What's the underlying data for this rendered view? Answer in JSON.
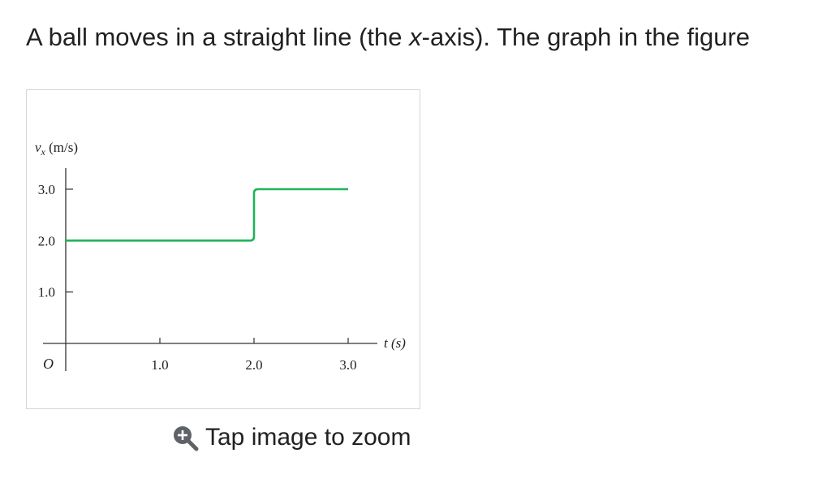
{
  "question": {
    "before": "A ball moves in a straight line (the ",
    "var": "x",
    "after": "-axis). The graph in the figure"
  },
  "figure": {
    "ylabel_var": "v",
    "ylabel_sub": "x",
    "ylabel_unit": " (m/s)",
    "xlabel": "t (s)",
    "origin": "O",
    "line_color": "#20b35a"
  },
  "chart_data": {
    "type": "line",
    "title": "",
    "xlabel": "t (s)",
    "ylabel": "v_x (m/s)",
    "xlim": [
      0,
      3.0
    ],
    "ylim": [
      0,
      3.0
    ],
    "xticks": [
      "1.0",
      "2.0",
      "3.0"
    ],
    "yticks": [
      "1.0",
      "2.0",
      "3.0"
    ],
    "grid": false,
    "series": [
      {
        "x": [
          0,
          2.0,
          2.0,
          3.0
        ],
        "y": [
          2.0,
          2.0,
          3.0,
          3.0
        ]
      }
    ]
  },
  "zoom": {
    "icon": "zoom-in-icon",
    "label": "Tap image to zoom"
  }
}
